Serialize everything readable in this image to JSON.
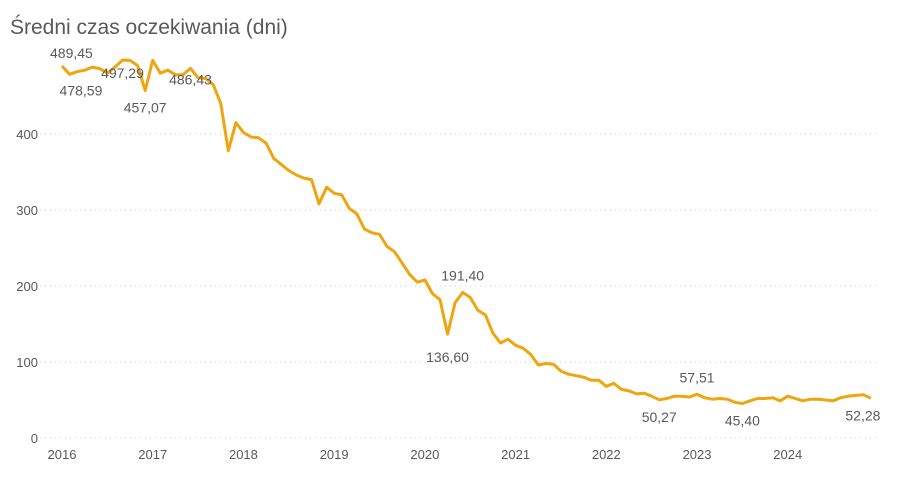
{
  "chart_data": {
    "type": "line",
    "title": "Średni czas oczekiwania (dni)",
    "xlabel": "",
    "ylabel": "",
    "ylim": [
      0,
      500
    ],
    "yticks": [
      0,
      100,
      200,
      300,
      400
    ],
    "xtick_labels": [
      "2016",
      "2017",
      "2018",
      "2019",
      "2020",
      "2021",
      "2022",
      "2023",
      "2024"
    ],
    "grid": "horizontal dotted",
    "legend": "none",
    "line_color": "#EFA50E",
    "x_start": "2016-01",
    "x_frequency": "monthly",
    "values": [
      489.45,
      478.59,
      482,
      484,
      488,
      486,
      480,
      488,
      497.29,
      497,
      490,
      457.07,
      497,
      480,
      484,
      478,
      478,
      486.43,
      474,
      473,
      465,
      440,
      378,
      415,
      402,
      396,
      395,
      388,
      368,
      360,
      352,
      346,
      342,
      340,
      308,
      330,
      322,
      320,
      302,
      295,
      275,
      270,
      268,
      252,
      245,
      230,
      215,
      205,
      208,
      190,
      182,
      136.6,
      178,
      191.4,
      185,
      168,
      162,
      138,
      125,
      130,
      122,
      118,
      110,
      96,
      98,
      97,
      88,
      84,
      82,
      80,
      76,
      76,
      68,
      72,
      64,
      62,
      58,
      59,
      55,
      50.27,
      52,
      55,
      55,
      54,
      57.51,
      53,
      51,
      52,
      51,
      47,
      45.4,
      49,
      52,
      52,
      53,
      49,
      55,
      52,
      49,
      51,
      51,
      50,
      49,
      53,
      55,
      56,
      57,
      52.28
    ],
    "data_labels": [
      {
        "index": 0,
        "text": "489,45"
      },
      {
        "index": 1,
        "text": "478,59"
      },
      {
        "index": 8,
        "text": "497,29"
      },
      {
        "index": 11,
        "text": "457,07"
      },
      {
        "index": 17,
        "text": "486,43"
      },
      {
        "index": 51,
        "text": "136,60"
      },
      {
        "index": 53,
        "text": "191,40"
      },
      {
        "index": 79,
        "text": "50,27"
      },
      {
        "index": 84,
        "text": "57,51"
      },
      {
        "index": 90,
        "text": "45,40"
      },
      {
        "index": 107,
        "text": "52,28"
      }
    ]
  }
}
